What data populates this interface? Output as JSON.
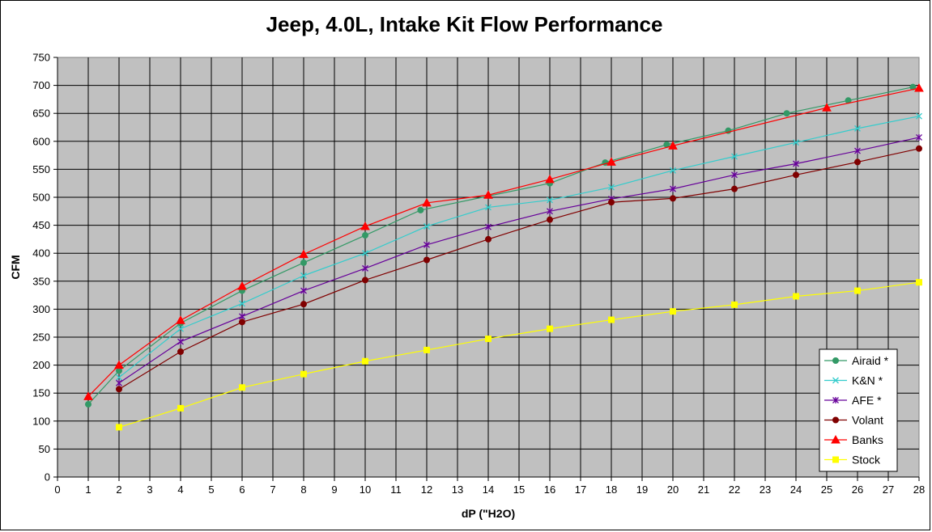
{
  "chart_data": {
    "type": "line",
    "title": "Jeep, 4.0L, Intake Kit Flow Performance",
    "xlabel": "dP (\"H2O)",
    "ylabel": "CFM",
    "xlim": [
      0,
      28
    ],
    "ylim": [
      0,
      750
    ],
    "x_ticks": [
      "0",
      "1",
      "2",
      "3",
      "4",
      "5",
      "6",
      "7",
      "8",
      "9",
      "10",
      "11",
      "12",
      "13",
      "14",
      "15",
      "16",
      "17",
      "18",
      "19",
      "20",
      "21",
      "22",
      "23",
      "24",
      "25",
      "26",
      "27",
      "28"
    ],
    "y_ticks": [
      "0",
      "50",
      "100",
      "150",
      "200",
      "250",
      "300",
      "350",
      "400",
      "450",
      "500",
      "550",
      "600",
      "650",
      "700",
      "750"
    ],
    "grid": true,
    "legend_position": "bottom-right",
    "plot_background": "#c0c0c0",
    "series": [
      {
        "name": "Airaid *",
        "color": "#339966",
        "marker": "circle",
        "x": [
          1,
          2,
          4,
          6,
          8,
          10,
          11.8,
          16,
          17.8,
          19.8,
          21.8,
          23.7,
          25.7,
          27.8
        ],
        "y": [
          130,
          190,
          275,
          333,
          383,
          432,
          477,
          525,
          562,
          594,
          619,
          650,
          673,
          697
        ]
      },
      {
        "name": "K&N *",
        "color": "#33cccc",
        "marker": "x",
        "x": [
          2,
          4,
          6,
          8,
          10,
          12,
          14,
          16,
          18,
          20,
          22,
          24,
          26,
          28
        ],
        "y": [
          178,
          265,
          310,
          360,
          400,
          448,
          482,
          495,
          518,
          548,
          573,
          598,
          623,
          645
        ]
      },
      {
        "name": "AFE *",
        "color": "#660099",
        "marker": "star",
        "x": [
          2,
          4,
          6,
          8,
          10,
          12,
          14,
          16,
          18,
          20,
          22,
          24,
          26,
          28
        ],
        "y": [
          168,
          242,
          287,
          333,
          373,
          415,
          447,
          475,
          497,
          515,
          540,
          560,
          583,
          607
        ]
      },
      {
        "name": "Volant",
        "color": "#800000",
        "marker": "circle",
        "x": [
          2,
          4,
          6,
          8,
          10,
          12,
          14,
          16,
          18,
          20,
          22,
          24,
          26,
          28
        ],
        "y": [
          157,
          224,
          277,
          309,
          352,
          388,
          425,
          460,
          491,
          498,
          515,
          540,
          563,
          587
        ]
      },
      {
        "name": "Banks",
        "color": "#ff0000",
        "marker": "triangle",
        "x": [
          1,
          2,
          4,
          6,
          8,
          10,
          12,
          14,
          16,
          18,
          20,
          25,
          28
        ],
        "y": [
          144,
          200,
          280,
          341,
          398,
          448,
          490,
          504,
          532,
          563,
          592,
          660,
          695
        ]
      },
      {
        "name": "Stock",
        "color": "#ffff00",
        "marker": "square",
        "x": [
          2,
          4,
          6,
          8,
          10,
          12,
          14,
          16,
          18,
          20,
          22,
          24,
          26,
          28
        ],
        "y": [
          89,
          123,
          160,
          184,
          207,
          227,
          247,
          265,
          281,
          296,
          308,
          323,
          333,
          348
        ]
      }
    ]
  }
}
